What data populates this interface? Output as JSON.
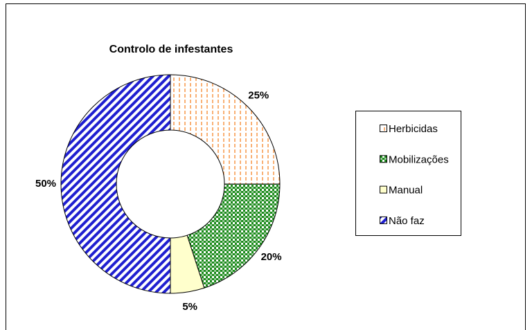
{
  "chart_data": {
    "type": "donut",
    "title": "Controlo de infestantes",
    "categories": [
      "Herbicidas",
      "Mobilizações",
      "Manual",
      "Não faz"
    ],
    "values": [
      25,
      20,
      5,
      50
    ],
    "value_labels": [
      "25%",
      "20%",
      "5%",
      "50%"
    ],
    "colors": [
      "#f79646",
      "#1a8a1a",
      "#ffffcc",
      "#1f1fd0"
    ],
    "legend": "right"
  }
}
